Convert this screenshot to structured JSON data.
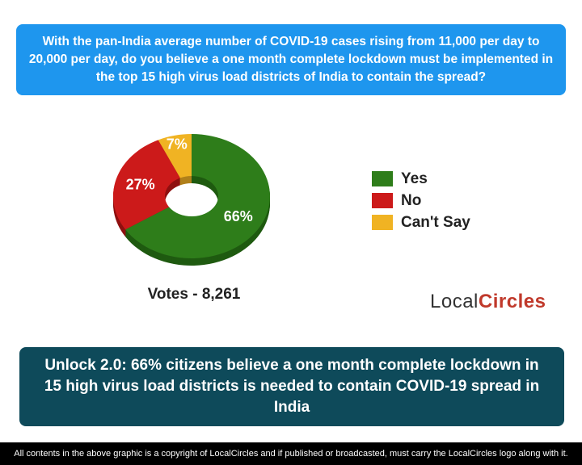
{
  "question": "With the pan-India average number of COVID-19 cases rising from 11,000 per day to 20,000 per day, do you believe a one month complete lockdown must be implemented in the top 15 high virus load districts of India to contain the spread?",
  "chart_data": {
    "type": "pie",
    "style": "3d-donut",
    "categories": [
      "Yes",
      "No",
      "Can't Say"
    ],
    "values": [
      66,
      27,
      7
    ],
    "labels": [
      "66%",
      "27%",
      "7%"
    ],
    "colors": [
      "#2e7d1a",
      "#cc1a1a",
      "#f0b323"
    ],
    "dark_colors": [
      "#1f5a10",
      "#8f1010",
      "#b0801a"
    ],
    "legend_position": "right"
  },
  "votes": "Votes - 8,261",
  "logo": {
    "part1": "Local",
    "part2": "Circles"
  },
  "headline": "Unlock 2.0: 66% citizens believe a one month complete lockdown in 15 high virus load districts is needed to contain COVID-19 spread in India",
  "footer": "All contents in the above graphic is a copyright of LocalCircles and if published or broadcasted, must carry the LocalCircles logo along with it."
}
